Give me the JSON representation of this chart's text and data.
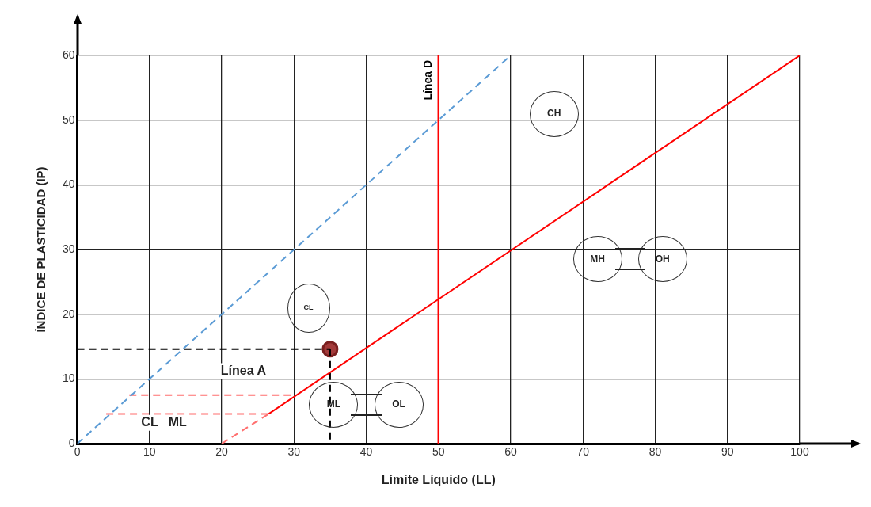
{
  "chart_data": {
    "type": "line",
    "xlabel": "Límite Líquido (LL)",
    "ylabel": "ÍNDICE DE PLASTICIDAD (IP)",
    "xlim": [
      0,
      100
    ],
    "ylim": [
      0,
      60
    ],
    "xticks": [
      0,
      10,
      20,
      30,
      40,
      50,
      60,
      70,
      80,
      90,
      100
    ],
    "yticks": [
      0,
      10,
      20,
      30,
      40,
      50,
      60
    ],
    "grid": true,
    "legend": false,
    "series": [
      {
        "color": "#5b9bd5",
        "line_style": "dashed",
        "x": [
          0,
          60
        ],
        "values": [
          0,
          60
        ]
      },
      {
        "color": "#ff0000",
        "line_style": "solid",
        "x": [
          26.5,
          100
        ],
        "values": [
          4.6,
          60
        ]
      },
      {
        "color": "#ff6f6f",
        "line_style": "dashed",
        "x": [
          20,
          26.5
        ],
        "values": [
          0,
          4.6
        ]
      },
      {
        "color": "#ff6f6f",
        "line_style": "dashed",
        "x": [
          7.2,
          29.8
        ],
        "values": [
          7.5,
          7.5
        ]
      },
      {
        "color": "#ff6f6f",
        "line_style": "dashed",
        "x": [
          4,
          26.5
        ],
        "values": [
          4.6,
          4.6
        ]
      },
      {
        "color": "#000000",
        "line_style": "dashed",
        "x": [
          0,
          35
        ],
        "values": [
          14.6,
          14.6
        ]
      },
      {
        "color": "#000000",
        "line_style": "dashed",
        "x": [
          35,
          35
        ],
        "values": [
          14.6,
          0
        ]
      },
      {
        "type": "scatter",
        "color": "#a33a3a",
        "marker": "circle",
        "x": [
          35
        ],
        "values": [
          14.6
        ]
      }
    ],
    "ref_lines": [
      {
        "axis": "x",
        "value": 50,
        "label": "Línea D",
        "color": "#ff0000",
        "line_style": "solid"
      }
    ],
    "annotations": [
      "CL",
      "CH",
      "MH",
      "OH",
      "ML",
      "OL",
      "Línea A",
      "CL   ML"
    ]
  }
}
